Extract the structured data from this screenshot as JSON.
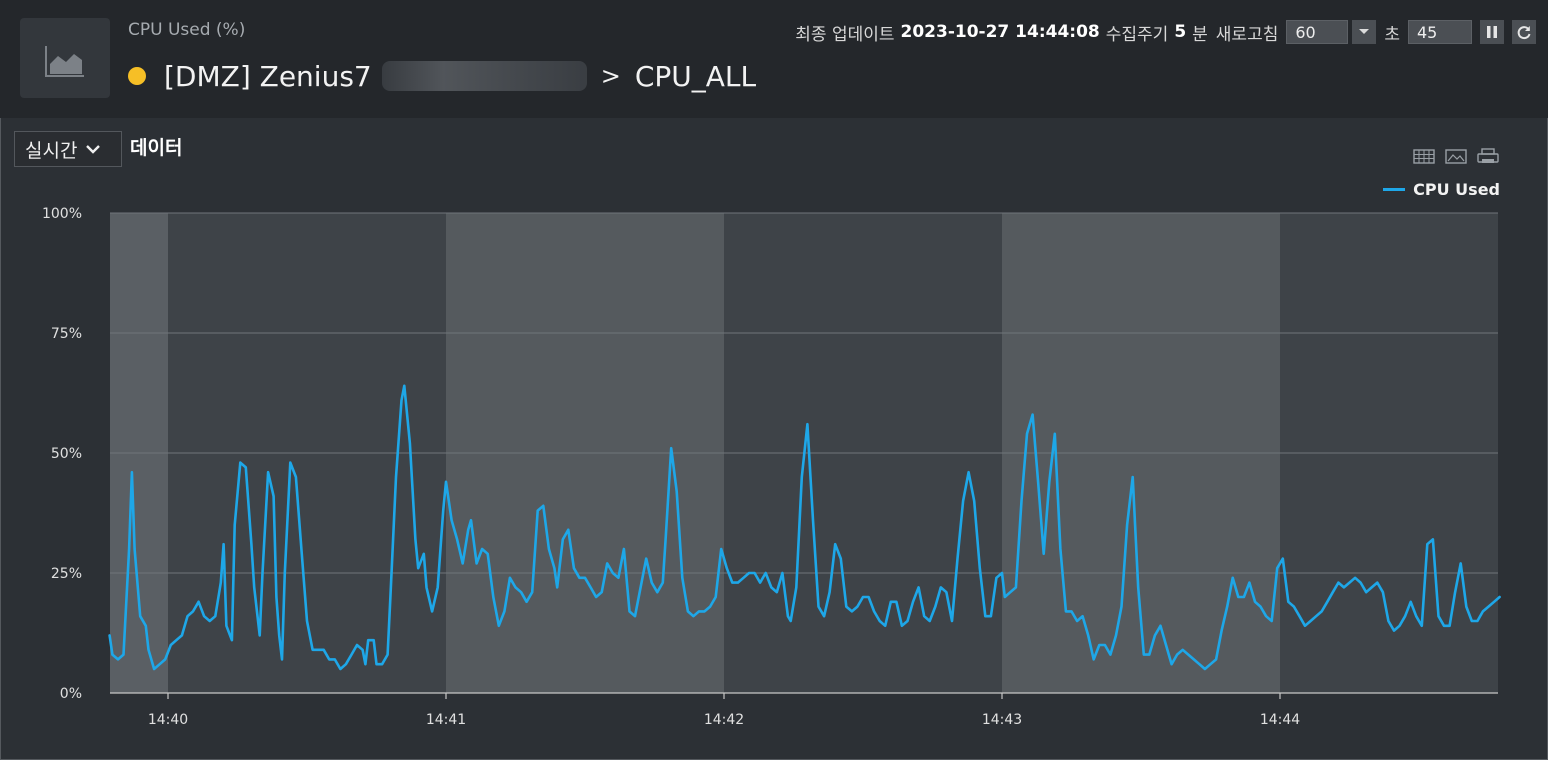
{
  "header": {
    "subtitle": "CPU Used (%)",
    "title_prefix": "[DMZ] Zenius7",
    "title_sep": ">",
    "title_target": "CPU_ALL",
    "status_color": "#f6bf26",
    "last_update_label": "최종 업데이트",
    "last_update_value": "2023-10-27 14:44:08",
    "collect_label": "수집주기",
    "collect_value": "5",
    "collect_unit": "분",
    "refresh_label": "새로고침",
    "refresh_value": "60",
    "seconds_label": "초",
    "seconds_value": "45"
  },
  "toolbar": {
    "mode": "실시간",
    "data_label": "데이터"
  },
  "icons": [
    "chart-area-icon",
    "chevron-down-icon",
    "pause-icon",
    "refresh-icon",
    "grid-icon",
    "image-icon",
    "print-icon"
  ],
  "chart_data": {
    "type": "line",
    "ylim": [
      0,
      100
    ],
    "yticks": [
      "0%",
      "25%",
      "50%",
      "75%",
      "100%"
    ],
    "xticks": [
      "14:40",
      "14:41",
      "14:42",
      "14:43",
      "14:44"
    ],
    "xunit": "minutes after 14:40",
    "xlim": [
      -0.21,
      4.79
    ],
    "legend_position": "top-right",
    "grid": true,
    "series": [
      {
        "name": "CPU Used",
        "color": "#1ea7e8",
        "points": [
          [
            -0.21,
            12
          ],
          [
            -0.2,
            8
          ],
          [
            -0.18,
            7
          ],
          [
            -0.16,
            8
          ],
          [
            -0.14,
            30
          ],
          [
            -0.13,
            46
          ],
          [
            -0.12,
            30
          ],
          [
            -0.1,
            16
          ],
          [
            -0.08,
            14
          ],
          [
            -0.07,
            9
          ],
          [
            -0.05,
            5
          ],
          [
            -0.03,
            6
          ],
          [
            -0.01,
            7
          ],
          [
            0.01,
            10
          ],
          [
            0.03,
            11
          ],
          [
            0.05,
            12
          ],
          [
            0.07,
            16
          ],
          [
            0.09,
            17
          ],
          [
            0.11,
            19
          ],
          [
            0.13,
            16
          ],
          [
            0.15,
            15
          ],
          [
            0.17,
            16
          ],
          [
            0.19,
            23
          ],
          [
            0.2,
            31
          ],
          [
            0.21,
            14
          ],
          [
            0.23,
            11
          ],
          [
            0.24,
            35
          ],
          [
            0.26,
            48
          ],
          [
            0.28,
            47
          ],
          [
            0.3,
            31
          ],
          [
            0.31,
            22
          ],
          [
            0.33,
            12
          ],
          [
            0.34,
            25
          ],
          [
            0.36,
            46
          ],
          [
            0.38,
            41
          ],
          [
            0.39,
            20
          ],
          [
            0.4,
            12
          ],
          [
            0.41,
            7
          ],
          [
            0.42,
            25
          ],
          [
            0.44,
            48
          ],
          [
            0.46,
            45
          ],
          [
            0.48,
            30
          ],
          [
            0.5,
            15
          ],
          [
            0.52,
            9
          ],
          [
            0.54,
            9
          ],
          [
            0.56,
            9
          ],
          [
            0.58,
            7
          ],
          [
            0.6,
            7
          ],
          [
            0.62,
            5
          ],
          [
            0.64,
            6
          ],
          [
            0.66,
            8
          ],
          [
            0.68,
            10
          ],
          [
            0.7,
            9
          ],
          [
            0.71,
            6
          ],
          [
            0.72,
            11
          ],
          [
            0.74,
            11
          ],
          [
            0.75,
            6
          ],
          [
            0.77,
            6
          ],
          [
            0.79,
            8
          ],
          [
            0.8,
            20
          ],
          [
            0.82,
            45
          ],
          [
            0.84,
            61
          ],
          [
            0.85,
            64
          ],
          [
            0.87,
            52
          ],
          [
            0.89,
            32
          ],
          [
            0.9,
            26
          ],
          [
            0.92,
            29
          ],
          [
            0.93,
            22
          ],
          [
            0.95,
            17
          ],
          [
            0.97,
            22
          ],
          [
            0.99,
            38
          ],
          [
            1.0,
            44
          ],
          [
            1.02,
            36
          ],
          [
            1.04,
            32
          ],
          [
            1.06,
            27
          ],
          [
            1.08,
            34
          ],
          [
            1.09,
            36
          ],
          [
            1.11,
            27
          ],
          [
            1.13,
            30
          ],
          [
            1.15,
            29
          ],
          [
            1.17,
            20
          ],
          [
            1.19,
            14
          ],
          [
            1.21,
            17
          ],
          [
            1.23,
            24
          ],
          [
            1.25,
            22
          ],
          [
            1.27,
            21
          ],
          [
            1.29,
            19
          ],
          [
            1.31,
            21
          ],
          [
            1.33,
            38
          ],
          [
            1.35,
            39
          ],
          [
            1.37,
            30
          ],
          [
            1.39,
            26
          ],
          [
            1.4,
            22
          ],
          [
            1.42,
            32
          ],
          [
            1.44,
            34
          ],
          [
            1.46,
            26
          ],
          [
            1.48,
            24
          ],
          [
            1.5,
            24
          ],
          [
            1.52,
            22
          ],
          [
            1.54,
            20
          ],
          [
            1.56,
            21
          ],
          [
            1.58,
            27
          ],
          [
            1.6,
            25
          ],
          [
            1.62,
            24
          ],
          [
            1.64,
            30
          ],
          [
            1.66,
            17
          ],
          [
            1.68,
            16
          ],
          [
            1.7,
            22
          ],
          [
            1.72,
            28
          ],
          [
            1.74,
            23
          ],
          [
            1.76,
            21
          ],
          [
            1.78,
            23
          ],
          [
            1.79,
            32
          ],
          [
            1.81,
            51
          ],
          [
            1.83,
            42
          ],
          [
            1.85,
            24
          ],
          [
            1.87,
            17
          ],
          [
            1.89,
            16
          ],
          [
            1.91,
            17
          ],
          [
            1.93,
            17
          ],
          [
            1.95,
            18
          ],
          [
            1.97,
            20
          ],
          [
            1.99,
            30
          ],
          [
            2.01,
            26
          ],
          [
            2.03,
            23
          ],
          [
            2.05,
            23
          ],
          [
            2.07,
            24
          ],
          [
            2.09,
            25
          ],
          [
            2.11,
            25
          ],
          [
            2.13,
            23
          ],
          [
            2.15,
            25
          ],
          [
            2.17,
            22
          ],
          [
            2.19,
            21
          ],
          [
            2.21,
            25
          ],
          [
            2.23,
            16
          ],
          [
            2.24,
            15
          ],
          [
            2.26,
            22
          ],
          [
            2.28,
            45
          ],
          [
            2.3,
            56
          ],
          [
            2.32,
            36
          ],
          [
            2.34,
            18
          ],
          [
            2.36,
            16
          ],
          [
            2.38,
            21
          ],
          [
            2.4,
            31
          ],
          [
            2.42,
            28
          ],
          [
            2.44,
            18
          ],
          [
            2.46,
            17
          ],
          [
            2.48,
            18
          ],
          [
            2.5,
            20
          ],
          [
            2.52,
            20
          ],
          [
            2.54,
            17
          ],
          [
            2.56,
            15
          ],
          [
            2.58,
            14
          ],
          [
            2.6,
            19
          ],
          [
            2.62,
            19
          ],
          [
            2.64,
            14
          ],
          [
            2.66,
            15
          ],
          [
            2.68,
            19
          ],
          [
            2.7,
            22
          ],
          [
            2.72,
            16
          ],
          [
            2.74,
            15
          ],
          [
            2.76,
            18
          ],
          [
            2.78,
            22
          ],
          [
            2.8,
            21
          ],
          [
            2.82,
            15
          ],
          [
            2.84,
            28
          ],
          [
            2.86,
            40
          ],
          [
            2.88,
            46
          ],
          [
            2.9,
            40
          ],
          [
            2.92,
            26
          ],
          [
            2.94,
            16
          ],
          [
            2.96,
            16
          ],
          [
            2.98,
            24
          ],
          [
            3.0,
            25
          ],
          [
            3.01,
            20
          ],
          [
            3.03,
            21
          ],
          [
            3.05,
            22
          ],
          [
            3.07,
            40
          ],
          [
            3.09,
            54
          ],
          [
            3.11,
            58
          ],
          [
            3.13,
            44
          ],
          [
            3.15,
            29
          ],
          [
            3.17,
            44
          ],
          [
            3.19,
            54
          ],
          [
            3.21,
            30
          ],
          [
            3.23,
            17
          ],
          [
            3.25,
            17
          ],
          [
            3.27,
            15
          ],
          [
            3.29,
            16
          ],
          [
            3.31,
            12
          ],
          [
            3.33,
            7
          ],
          [
            3.35,
            10
          ],
          [
            3.37,
            10
          ],
          [
            3.39,
            8
          ],
          [
            3.41,
            12
          ],
          [
            3.43,
            18
          ],
          [
            3.45,
            35
          ],
          [
            3.47,
            45
          ],
          [
            3.49,
            22
          ],
          [
            3.51,
            8
          ],
          [
            3.53,
            8
          ],
          [
            3.55,
            12
          ],
          [
            3.57,
            14
          ],
          [
            3.59,
            10
          ],
          [
            3.61,
            6
          ],
          [
            3.63,
            8
          ],
          [
            3.65,
            9
          ],
          [
            3.67,
            8
          ],
          [
            3.69,
            7
          ],
          [
            3.71,
            6
          ],
          [
            3.73,
            5
          ],
          [
            3.75,
            6
          ],
          [
            3.77,
            7
          ],
          [
            3.79,
            13
          ],
          [
            3.81,
            18
          ],
          [
            3.83,
            24
          ],
          [
            3.85,
            20
          ],
          [
            3.87,
            20
          ],
          [
            3.89,
            23
          ],
          [
            3.91,
            19
          ],
          [
            3.93,
            18
          ],
          [
            3.95,
            16
          ],
          [
            3.97,
            15
          ],
          [
            3.99,
            26
          ],
          [
            4.01,
            28
          ],
          [
            4.03,
            19
          ],
          [
            4.05,
            18
          ],
          [
            4.07,
            16
          ],
          [
            4.09,
            14
          ],
          [
            4.11,
            15
          ],
          [
            4.13,
            16
          ],
          [
            4.15,
            17
          ],
          [
            4.17,
            19
          ],
          [
            4.19,
            21
          ],
          [
            4.21,
            23
          ],
          [
            4.23,
            22
          ],
          [
            4.25,
            23
          ],
          [
            4.27,
            24
          ],
          [
            4.29,
            23
          ],
          [
            4.31,
            21
          ],
          [
            4.33,
            22
          ],
          [
            4.35,
            23
          ],
          [
            4.37,
            21
          ],
          [
            4.39,
            15
          ],
          [
            4.41,
            13
          ],
          [
            4.43,
            14
          ],
          [
            4.45,
            16
          ],
          [
            4.47,
            19
          ],
          [
            4.49,
            16
          ],
          [
            4.51,
            14
          ],
          [
            4.53,
            31
          ],
          [
            4.55,
            32
          ],
          [
            4.57,
            16
          ],
          [
            4.59,
            14
          ],
          [
            4.61,
            14
          ],
          [
            4.63,
            21
          ],
          [
            4.65,
            27
          ],
          [
            4.67,
            18
          ],
          [
            4.69,
            15
          ],
          [
            4.71,
            15
          ],
          [
            4.73,
            17
          ],
          [
            4.75,
            18
          ],
          [
            4.77,
            19
          ],
          [
            4.79,
            20
          ]
        ]
      }
    ]
  }
}
